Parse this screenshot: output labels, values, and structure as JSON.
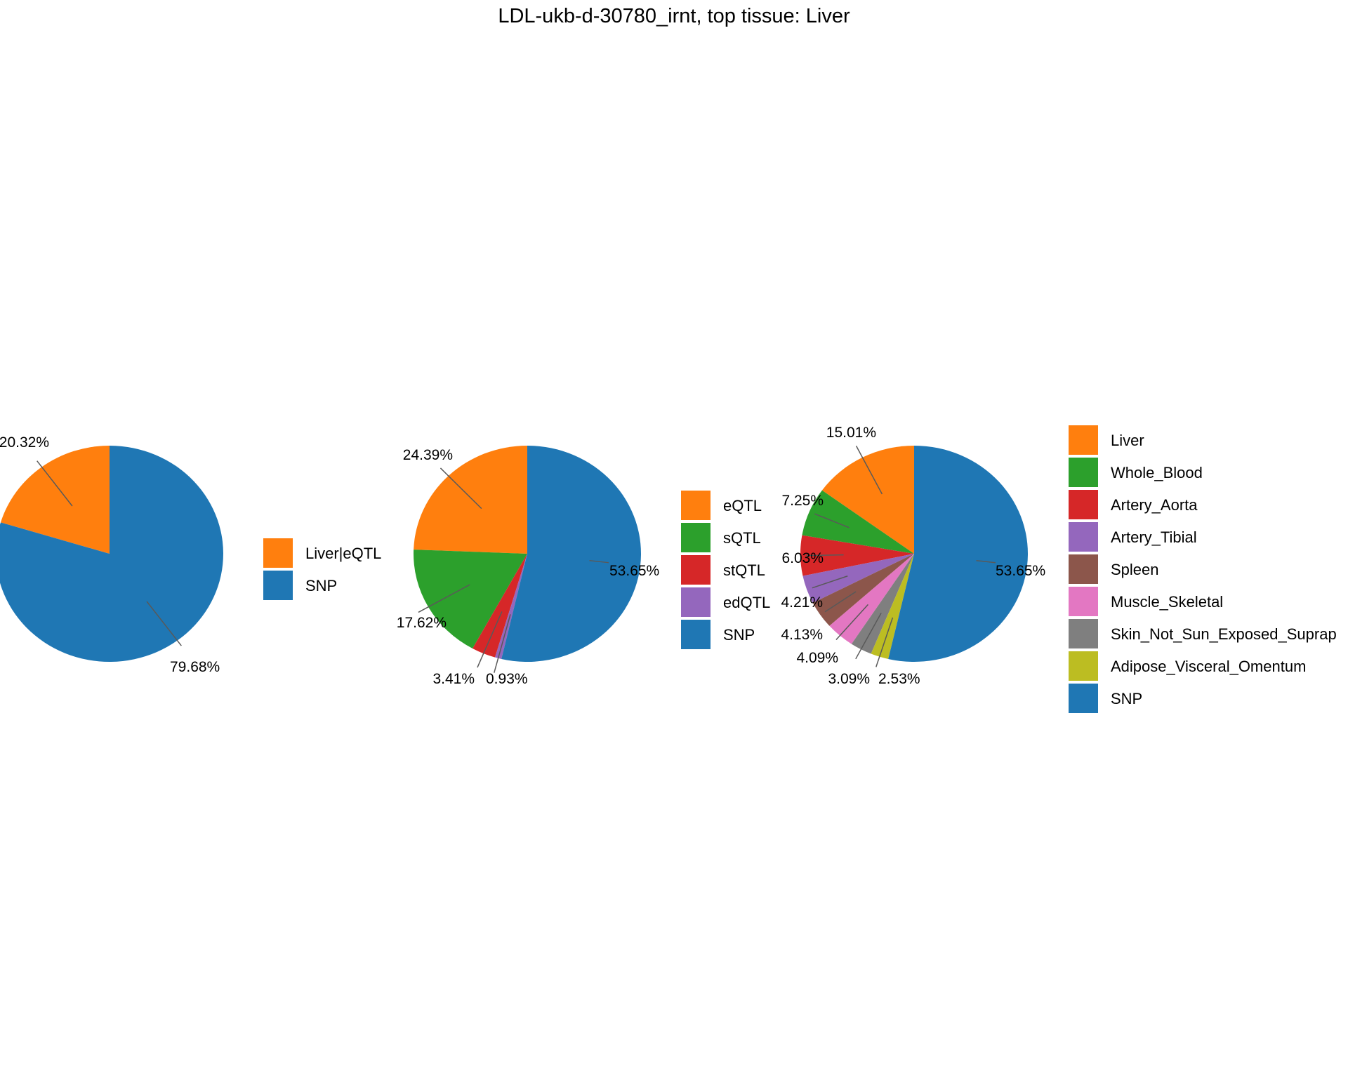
{
  "title": "LDL-ukb-d-30780_irnt, top tissue: Liver",
  "colors": {
    "orange": "#ff7f0e",
    "green": "#2ca02c",
    "red": "#d62728",
    "purple": "#9467bd",
    "brown": "#8c564b",
    "pink": "#e377c2",
    "gray": "#7f7f7f",
    "olive": "#bcbd22",
    "blue": "#1f77b4"
  },
  "chart_data": [
    {
      "type": "pie",
      "title": "",
      "slices": [
        {
          "label": "Liver|eQTL",
          "value": 20.32,
          "pct_label": "20.32%",
          "color": "#ff7f0e"
        },
        {
          "label": "SNP",
          "value": 79.68,
          "pct_label": "79.68%",
          "color": "#1f77b4"
        }
      ],
      "legend": [
        "Liver|eQTL",
        "SNP"
      ],
      "legend_placement": "right"
    },
    {
      "type": "pie",
      "title": "",
      "slices": [
        {
          "label": "eQTL",
          "value": 24.39,
          "pct_label": "24.39%",
          "color": "#ff7f0e"
        },
        {
          "label": "sQTL",
          "value": 17.62,
          "pct_label": "17.62%",
          "color": "#2ca02c"
        },
        {
          "label": "stQTL",
          "value": 3.41,
          "pct_label": "3.41%",
          "color": "#d62728"
        },
        {
          "label": "edQTL",
          "value": 0.93,
          "pct_label": "0.93%",
          "color": "#9467bd"
        },
        {
          "label": "SNP",
          "value": 53.65,
          "pct_label": "53.65%",
          "color": "#1f77b4"
        }
      ],
      "legend": [
        "eQTL",
        "sQTL",
        "stQTL",
        "edQTL",
        "SNP"
      ],
      "legend_placement": "right"
    },
    {
      "type": "pie",
      "title": "",
      "slices": [
        {
          "label": "Liver",
          "value": 15.01,
          "pct_label": "15.01%",
          "color": "#ff7f0e"
        },
        {
          "label": "Whole_Blood",
          "value": 7.25,
          "pct_label": "7.25%",
          "color": "#2ca02c"
        },
        {
          "label": "Artery_Aorta",
          "value": 6.03,
          "pct_label": "6.03%",
          "color": "#d62728"
        },
        {
          "label": "Artery_Tibial",
          "value": 4.21,
          "pct_label": "4.21%",
          "color": "#9467bd"
        },
        {
          "label": "Spleen",
          "value": 4.13,
          "pct_label": "4.13%",
          "color": "#8c564b"
        },
        {
          "label": "Muscle_Skeletal",
          "value": 4.09,
          "pct_label": "4.09%",
          "color": "#e377c2"
        },
        {
          "label": "Skin_Not_Sun_Exposed_Suprap",
          "value": 3.09,
          "pct_label": "3.09%",
          "color": "#7f7f7f"
        },
        {
          "label": "Adipose_Visceral_Omentum",
          "value": 2.53,
          "pct_label": "2.53%",
          "color": "#bcbd22"
        },
        {
          "label": "SNP",
          "value": 53.65,
          "pct_label": "53.65%",
          "color": "#1f77b4"
        }
      ],
      "legend": [
        "Liver",
        "Whole_Blood",
        "Artery_Aorta",
        "Artery_Tibial",
        "Spleen",
        "Muscle_Skeletal",
        "Skin_Not_Sun_Exposed_Suprap",
        "Adipose_Visceral_Omentum",
        "SNP"
      ],
      "legend_placement": "right"
    }
  ]
}
